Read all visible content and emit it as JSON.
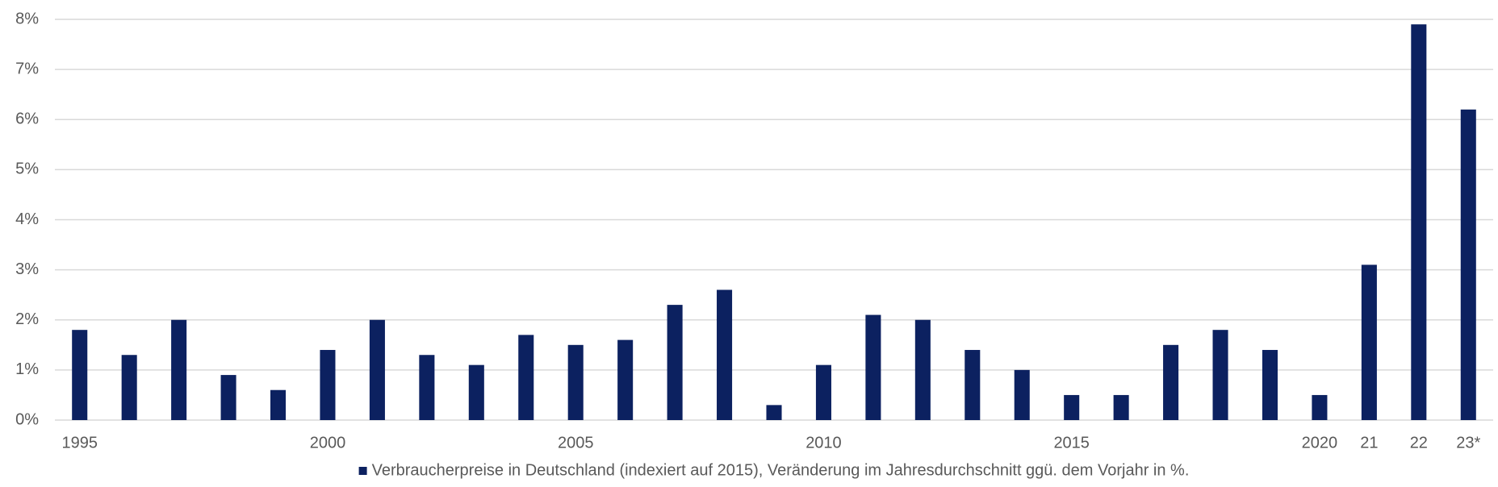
{
  "chart_data": {
    "type": "bar",
    "categories": [
      "1995",
      null,
      null,
      null,
      null,
      "2000",
      null,
      null,
      null,
      null,
      "2005",
      null,
      null,
      null,
      null,
      "2010",
      null,
      null,
      null,
      null,
      "2015",
      null,
      null,
      null,
      null,
      "2020",
      "21",
      "22",
      "23*"
    ],
    "series": [
      {
        "name": "Verbraucherpreise in Deutschland (indexiert auf 2015), Veränderung im Jahresdurchschnitt ggü. dem Vorjahr in %.",
        "color": "#0c2160",
        "values": [
          1.8,
          1.3,
          2.0,
          0.9,
          0.6,
          1.4,
          2.0,
          1.3,
          1.1,
          1.7,
          1.5,
          1.6,
          2.3,
          2.6,
          0.3,
          1.1,
          2.1,
          2.0,
          1.4,
          1.0,
          0.5,
          0.5,
          1.5,
          1.8,
          1.4,
          0.5,
          3.1,
          7.9,
          6.2
        ]
      }
    ],
    "ylim": [
      0,
      8
    ],
    "yticks": [
      {
        "value": 0,
        "label": "0%"
      },
      {
        "value": 1,
        "label": "1%"
      },
      {
        "value": 2,
        "label": "2%"
      },
      {
        "value": 3,
        "label": "3%"
      },
      {
        "value": 4,
        "label": "4%"
      },
      {
        "value": 5,
        "label": "5%"
      },
      {
        "value": 6,
        "label": "6%"
      },
      {
        "value": 7,
        "label": "7%"
      },
      {
        "value": 8,
        "label": "8%"
      }
    ],
    "grid": true,
    "legend": "bottom"
  }
}
